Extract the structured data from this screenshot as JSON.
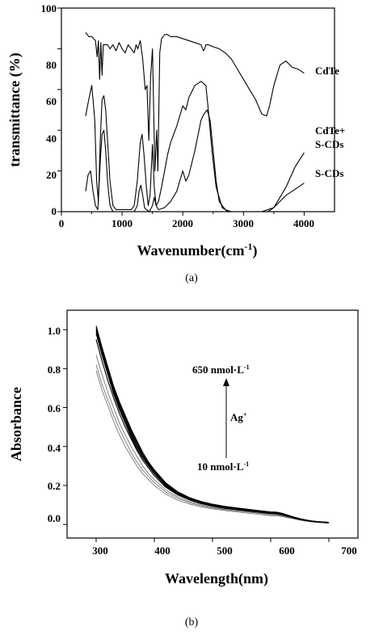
{
  "chart_data": [
    {
      "type": "line",
      "panel_label": "(a)",
      "xlabel_main": "Wavenumber(cm",
      "xlabel_sup": "-1",
      "xlabel_end": ")",
      "ylabel": "transmittance (%)",
      "xlim": [
        0,
        4500
      ],
      "ylim": [
        0,
        100
      ],
      "x_ticks": [
        "0",
        "1000",
        "2000",
        "3000",
        "4000"
      ],
      "y_ticks": [
        "0",
        "20",
        "40",
        "60",
        "80",
        "100"
      ],
      "series": [
        {
          "name": "CdTe",
          "label_lines": [
            "CdTe"
          ],
          "x": [
            400,
            450,
            500,
            560,
            590,
            610,
            630,
            650,
            670,
            690,
            720,
            760,
            800,
            850,
            900,
            950,
            1000,
            1050,
            1100,
            1150,
            1200,
            1230,
            1260,
            1300,
            1340,
            1380,
            1410,
            1440,
            1470,
            1500,
            1540,
            1570,
            1590,
            1620,
            1650,
            1700,
            1750,
            1800,
            1900,
            2000,
            2100,
            2200,
            2300,
            2340,
            2360,
            2380,
            2420,
            2500,
            2600,
            2700,
            2800,
            2900,
            3000,
            3100,
            3200,
            3300,
            3380,
            3430,
            3500,
            3600,
            3700,
            3800,
            3900,
            4000
          ],
          "y": [
            88,
            86,
            86,
            84,
            76,
            84,
            65,
            83,
            67,
            82,
            82,
            82,
            80,
            82,
            79,
            83,
            80,
            78,
            82,
            80,
            78,
            82,
            80,
            84,
            75,
            60,
            62,
            35,
            66,
            80,
            20,
            40,
            20,
            78,
            85,
            87,
            87,
            86,
            86,
            85,
            84,
            83,
            82,
            79,
            80,
            82,
            82,
            81,
            80,
            78,
            75,
            70,
            65,
            60,
            55,
            48,
            47,
            52,
            62,
            72,
            74,
            71,
            70,
            68
          ]
        },
        {
          "name": "CdTe+ S-CDs",
          "label_lines": [
            "CdTe+",
            "S-CDs"
          ],
          "x": [
            400,
            450,
            500,
            550,
            580,
            610,
            640,
            670,
            700,
            730,
            760,
            800,
            850,
            900,
            950,
            1000,
            1050,
            1100,
            1150,
            1200,
            1250,
            1300,
            1330,
            1360,
            1400,
            1430,
            1460,
            1500,
            1530,
            1560,
            1600,
            1650,
            1700,
            1750,
            1800,
            1900,
            2000,
            2050,
            2100,
            2200,
            2300,
            2380,
            2420,
            2480,
            2550,
            2650,
            2750,
            2850,
            2950,
            3100,
            3300,
            3500,
            3700,
            3850,
            4000
          ],
          "y": [
            47,
            55,
            62,
            45,
            15,
            5,
            35,
            55,
            57,
            50,
            35,
            15,
            3,
            1,
            1,
            1,
            1,
            1,
            1,
            3,
            15,
            34,
            38,
            28,
            12,
            3,
            8,
            33,
            12,
            3,
            5,
            12,
            20,
            28,
            34,
            42,
            52,
            50,
            56,
            62,
            64,
            62,
            50,
            30,
            12,
            2,
            0,
            0,
            0,
            0,
            0,
            2,
            12,
            22,
            29
          ]
        },
        {
          "name": "S-CDs",
          "label_lines": [
            "S-CDs"
          ],
          "x": [
            400,
            440,
            480,
            520,
            560,
            600,
            640,
            670,
            700,
            730,
            760,
            800,
            850,
            900,
            1000,
            1100,
            1200,
            1250,
            1280,
            1310,
            1340,
            1370,
            1400,
            1450,
            1500,
            1530,
            1560,
            1600,
            1700,
            1800,
            1900,
            2000,
            2050,
            2100,
            2200,
            2300,
            2350,
            2400,
            2450,
            2500,
            2550,
            2600,
            2700,
            2800,
            2900,
            3000,
            3100,
            3200,
            3300,
            3400,
            3500,
            3600,
            3700,
            3800,
            3900,
            4000
          ],
          "y": [
            10,
            18,
            20,
            10,
            3,
            1,
            25,
            38,
            40,
            30,
            15,
            3,
            0,
            0,
            0,
            0,
            0,
            3,
            10,
            13,
            8,
            2,
            1,
            0,
            3,
            7,
            3,
            1,
            2,
            5,
            10,
            20,
            15,
            18,
            30,
            45,
            48,
            50,
            45,
            30,
            15,
            5,
            1,
            0,
            0,
            0,
            0,
            0,
            0,
            0,
            2,
            5,
            8,
            10,
            12,
            14
          ]
        }
      ]
    },
    {
      "type": "line",
      "panel_label": "(b)",
      "xlabel": "Wavelength(nm)",
      "ylabel": "Absorbance",
      "xlim": [
        250,
        750
      ],
      "ylim": [
        -0.07,
        1.1
      ],
      "x_ticks": [
        "300",
        "400",
        "500",
        "600",
        "700"
      ],
      "y_ticks": [
        "0.0",
        "0.2",
        "0.4",
        "0.6",
        "0.8",
        "1.0"
      ],
      "annotations": {
        "top_label": "650 nmol·L",
        "top_sup": "-1",
        "middle_label": "Ag",
        "middle_sup": "+",
        "bottom_label": "10 nmol·L",
        "bottom_sup": "-1"
      },
      "x": [
        300,
        310,
        320,
        330,
        340,
        350,
        360,
        370,
        380,
        390,
        400,
        420,
        440,
        460,
        480,
        500,
        520,
        540,
        560,
        580,
        600,
        610,
        620,
        630,
        640,
        650,
        660,
        670,
        680,
        690,
        700
      ],
      "series": [
        {
          "values": [
            0.79,
            0.69,
            0.61,
            0.53,
            0.46,
            0.4,
            0.35,
            0.3,
            0.26,
            0.23,
            0.2,
            0.155,
            0.125,
            0.105,
            0.09,
            0.08,
            0.072,
            0.065,
            0.058,
            0.052,
            0.045,
            0.044,
            0.04,
            0.034,
            0.028,
            0.022,
            0.017,
            0.013,
            0.01,
            0.008,
            0.006
          ]
        },
        {
          "values": [
            0.82,
            0.72,
            0.64,
            0.56,
            0.49,
            0.43,
            0.37,
            0.32,
            0.28,
            0.245,
            0.215,
            0.166,
            0.134,
            0.112,
            0.096,
            0.085,
            0.077,
            0.07,
            0.063,
            0.057,
            0.05,
            0.049,
            0.044,
            0.037,
            0.03,
            0.024,
            0.018,
            0.014,
            0.011,
            0.009,
            0.007
          ]
        },
        {
          "values": [
            0.87,
            0.77,
            0.68,
            0.6,
            0.52,
            0.46,
            0.4,
            0.35,
            0.3,
            0.26,
            0.23,
            0.177,
            0.142,
            0.118,
            0.101,
            0.089,
            0.08,
            0.073,
            0.066,
            0.06,
            0.053,
            0.052,
            0.047,
            0.039,
            0.031,
            0.025,
            0.019,
            0.015,
            0.012,
            0.01,
            0.008
          ]
        },
        {
          "values": [
            0.95,
            0.84,
            0.74,
            0.65,
            0.57,
            0.5,
            0.44,
            0.38,
            0.33,
            0.29,
            0.25,
            0.19,
            0.152,
            0.126,
            0.107,
            0.094,
            0.084,
            0.077,
            0.07,
            0.063,
            0.056,
            0.055,
            0.049,
            0.041,
            0.033,
            0.026,
            0.02,
            0.016,
            0.013,
            0.011,
            0.009
          ]
        },
        {
          "values": [
            0.98,
            0.87,
            0.77,
            0.67,
            0.59,
            0.52,
            0.45,
            0.39,
            0.34,
            0.3,
            0.26,
            0.196,
            0.156,
            0.129,
            0.11,
            0.097,
            0.087,
            0.079,
            0.072,
            0.065,
            0.058,
            0.057,
            0.051,
            0.042,
            0.034,
            0.027,
            0.021,
            0.016,
            0.013,
            0.011,
            0.009
          ]
        },
        {
          "values": [
            0.99,
            0.88,
            0.78,
            0.68,
            0.6,
            0.53,
            0.46,
            0.4,
            0.35,
            0.305,
            0.265,
            0.2,
            0.159,
            0.131,
            0.112,
            0.098,
            0.088,
            0.08,
            0.073,
            0.066,
            0.059,
            0.058,
            0.052,
            0.043,
            0.035,
            0.028,
            0.021,
            0.017,
            0.013,
            0.011,
            0.009
          ]
        },
        {
          "values": [
            1.0,
            0.89,
            0.79,
            0.69,
            0.61,
            0.54,
            0.47,
            0.41,
            0.355,
            0.31,
            0.27,
            0.204,
            0.162,
            0.133,
            0.114,
            0.1,
            0.089,
            0.081,
            0.074,
            0.067,
            0.06,
            0.059,
            0.053,
            0.044,
            0.036,
            0.028,
            0.022,
            0.017,
            0.014,
            0.012,
            0.01
          ]
        },
        {
          "values": [
            1.01,
            0.9,
            0.8,
            0.7,
            0.62,
            0.55,
            0.48,
            0.42,
            0.36,
            0.315,
            0.275,
            0.208,
            0.165,
            0.136,
            0.116,
            0.102,
            0.091,
            0.083,
            0.076,
            0.069,
            0.062,
            0.061,
            0.055,
            0.046,
            0.037,
            0.029,
            0.023,
            0.018,
            0.014,
            0.012,
            0.01
          ]
        },
        {
          "values": [
            1.02,
            0.91,
            0.81,
            0.71,
            0.63,
            0.56,
            0.49,
            0.43,
            0.37,
            0.32,
            0.28,
            0.212,
            0.168,
            0.138,
            0.118,
            0.104,
            0.093,
            0.085,
            0.078,
            0.071,
            0.064,
            0.063,
            0.057,
            0.047,
            0.038,
            0.03,
            0.023,
            0.018,
            0.015,
            0.013,
            0.011
          ]
        }
      ]
    }
  ],
  "style": {
    "axis_color": "#000000",
    "line_color": "#000000",
    "panel_b_light_color": "#666666"
  }
}
